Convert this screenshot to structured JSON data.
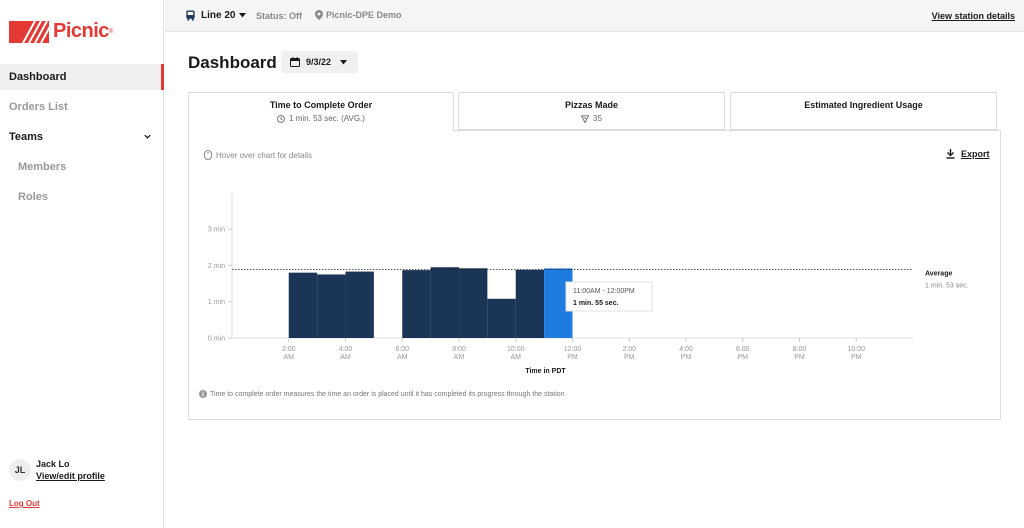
{
  "brand": {
    "name": "Picnic",
    "mark": "®",
    "color": "#e53935"
  },
  "sidebar": {
    "items": [
      {
        "label": "Dashboard",
        "active": true
      },
      {
        "label": "Orders List"
      },
      {
        "label": "Teams",
        "expanded": true
      },
      {
        "label": "Members",
        "sub": true
      },
      {
        "label": "Roles",
        "sub": true
      }
    ],
    "profile": {
      "initials": "JL",
      "name": "Jack Lo",
      "link": "View/edit profile"
    },
    "logout": "Log Out"
  },
  "topbar": {
    "line": "Line 20",
    "status": "Status: Off",
    "station": "Picnic-DPE Demo",
    "view_details": "View station details"
  },
  "header": {
    "title": "Dashboard",
    "date": "9/3/22"
  },
  "tabs": [
    {
      "title": "Time to Complete Order",
      "sub": "1 min. 53 sec. (AVG.)",
      "active": true
    },
    {
      "title": "Pizzas Made",
      "sub": "35"
    },
    {
      "title": "Estimated Ingredient Usage",
      "sub": ""
    }
  ],
  "card": {
    "hint": "Hover over chart for details",
    "export": "Export",
    "note": "Time to complete order measures the time an order is placed until it has completed its progress through the station"
  },
  "chart_data": {
    "type": "bar",
    "xlabel": "Time in PDT",
    "y_unit": "min",
    "ylim": [
      0,
      4
    ],
    "y_ticks": [
      "0 min",
      "1 min",
      "2 min",
      "3 min"
    ],
    "x_ticks": [
      [
        "2:00",
        "AM"
      ],
      [
        "4:00",
        "AM"
      ],
      [
        "6:00",
        "AM"
      ],
      [
        "8:00",
        "AM"
      ],
      [
        "10:00",
        "AM"
      ],
      [
        "12:00",
        "PM"
      ],
      [
        "2:00",
        "PM"
      ],
      [
        "4:00",
        "PM"
      ],
      [
        "6:00",
        "PM"
      ],
      [
        "8:00",
        "PM"
      ],
      [
        "10:00",
        "PM"
      ]
    ],
    "x_range_hours": [
      0,
      24
    ],
    "bars": [
      {
        "start_hour": 2,
        "value": 1.8
      },
      {
        "start_hour": 3,
        "value": 1.75
      },
      {
        "start_hour": 4,
        "value": 1.83
      },
      {
        "start_hour": 6,
        "value": 1.87
      },
      {
        "start_hour": 7,
        "value": 1.95
      },
      {
        "start_hour": 8,
        "value": 1.92
      },
      {
        "start_hour": 9,
        "value": 1.08
      },
      {
        "start_hour": 10,
        "value": 1.88
      },
      {
        "start_hour": 11,
        "value": 1.917,
        "highlighted": true
      }
    ],
    "bar_color": "#1b3556",
    "highlight_color": "#1e7be0",
    "average": {
      "label": "Average",
      "value_text": "1 min. 53 sec.",
      "value": 1.883
    },
    "tooltip": {
      "range": "11:00AM - 12:00PM",
      "value": "1 min. 55 sec."
    },
    "grid": true
  }
}
